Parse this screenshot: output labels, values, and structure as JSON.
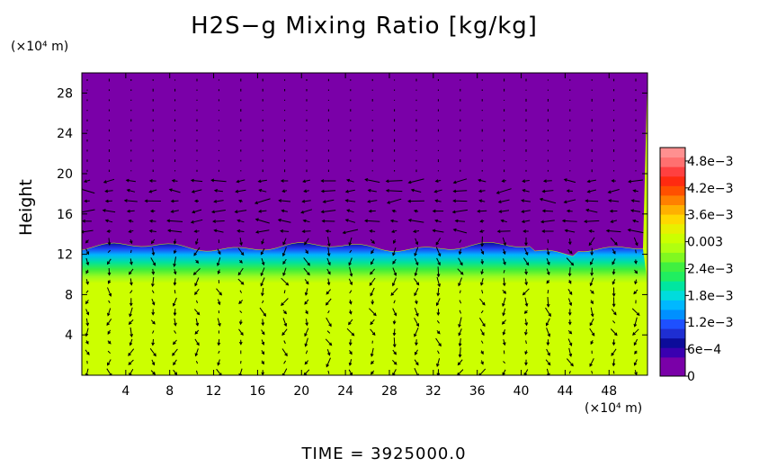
{
  "chart_data": {
    "type": "heatmap",
    "title": "H2S−g Mixing Ratio [kg/kg]",
    "ylabel": "Height",
    "x_unit": "(×10⁴ m)",
    "y_unit": "(×10⁴ m)",
    "footer": "TIME  =  3925000.0",
    "xlim": [
      0,
      51.5
    ],
    "ylim": [
      0,
      30
    ],
    "x_ticks": [
      "4",
      "8",
      "12",
      "16",
      "20",
      "24",
      "28",
      "32",
      "36",
      "40",
      "44",
      "48"
    ],
    "y_ticks": [
      "4",
      "8",
      "12",
      "16",
      "20",
      "24",
      "28"
    ],
    "colorbar": {
      "range": [
        0,
        0.0051
      ],
      "labels": [
        "4.8e−3",
        "4.2e−3",
        "3.6e−3",
        "0.003",
        "2.4e−3",
        "1.8e−3",
        "1.2e−3",
        "6e−4",
        "0"
      ],
      "label_values": [
        0.0048,
        0.0042,
        0.0036,
        0.003,
        0.0024,
        0.0018,
        0.0012,
        0.0006,
        0
      ]
    },
    "field": {
      "upper_value": 0,
      "upper_color": "#7a00a8",
      "interface_height": 12.7,
      "lower_value": 0.0034,
      "lower_color": "#ccff00",
      "transition_colors": [
        "#1a1acc",
        "#2060ff",
        "#00c8ff",
        "#00e6a0",
        "#40f040",
        "#a0ff20"
      ]
    },
    "vectors": "wind vector field overlay (black arrows)"
  }
}
